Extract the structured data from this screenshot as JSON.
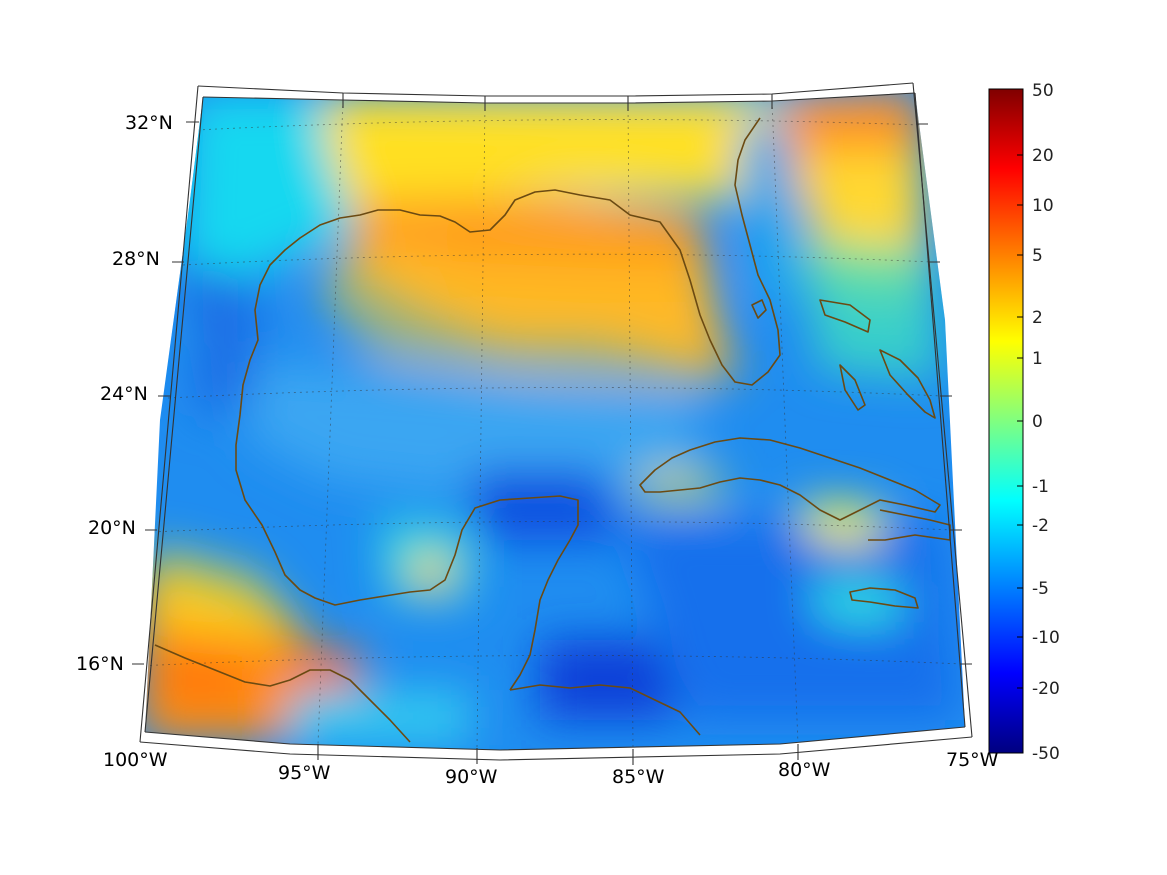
{
  "map": {
    "extent": {
      "lon_min": -100,
      "lon_max": -75,
      "lat_min": 14,
      "lat_max": 33
    },
    "colormap": "jet",
    "coastline_color": "#6b4a12"
  },
  "lat_ticks": [
    "32°N",
    "28°N",
    "24°N",
    "20°N",
    "16°N"
  ],
  "lon_ticks": [
    "100°W",
    "95°W",
    "90°W",
    "85°W",
    "80°W",
    "75°W"
  ],
  "colorbar": {
    "labels": [
      "50",
      "20",
      "10",
      "5",
      "2",
      "1",
      "0",
      "-1",
      "-2",
      "-5",
      "-10",
      "-20",
      "-50"
    ]
  },
  "field_regions": [
    {
      "name": "northern-gulf-coast",
      "level": 5
    },
    {
      "name": "west-florida-shelf",
      "level": 4
    },
    {
      "name": "northeast-corner-atlantic",
      "level": 6
    },
    {
      "name": "southwest-pacific-corner",
      "level": 6
    },
    {
      "name": "central-gulf",
      "level": -3
    },
    {
      "name": "caribbean-basin",
      "level": -8
    },
    {
      "name": "north-yucatan",
      "level": -12
    },
    {
      "name": "gulf-of-honduras",
      "level": -15
    },
    {
      "name": "south-cuba",
      "level": 2
    }
  ]
}
